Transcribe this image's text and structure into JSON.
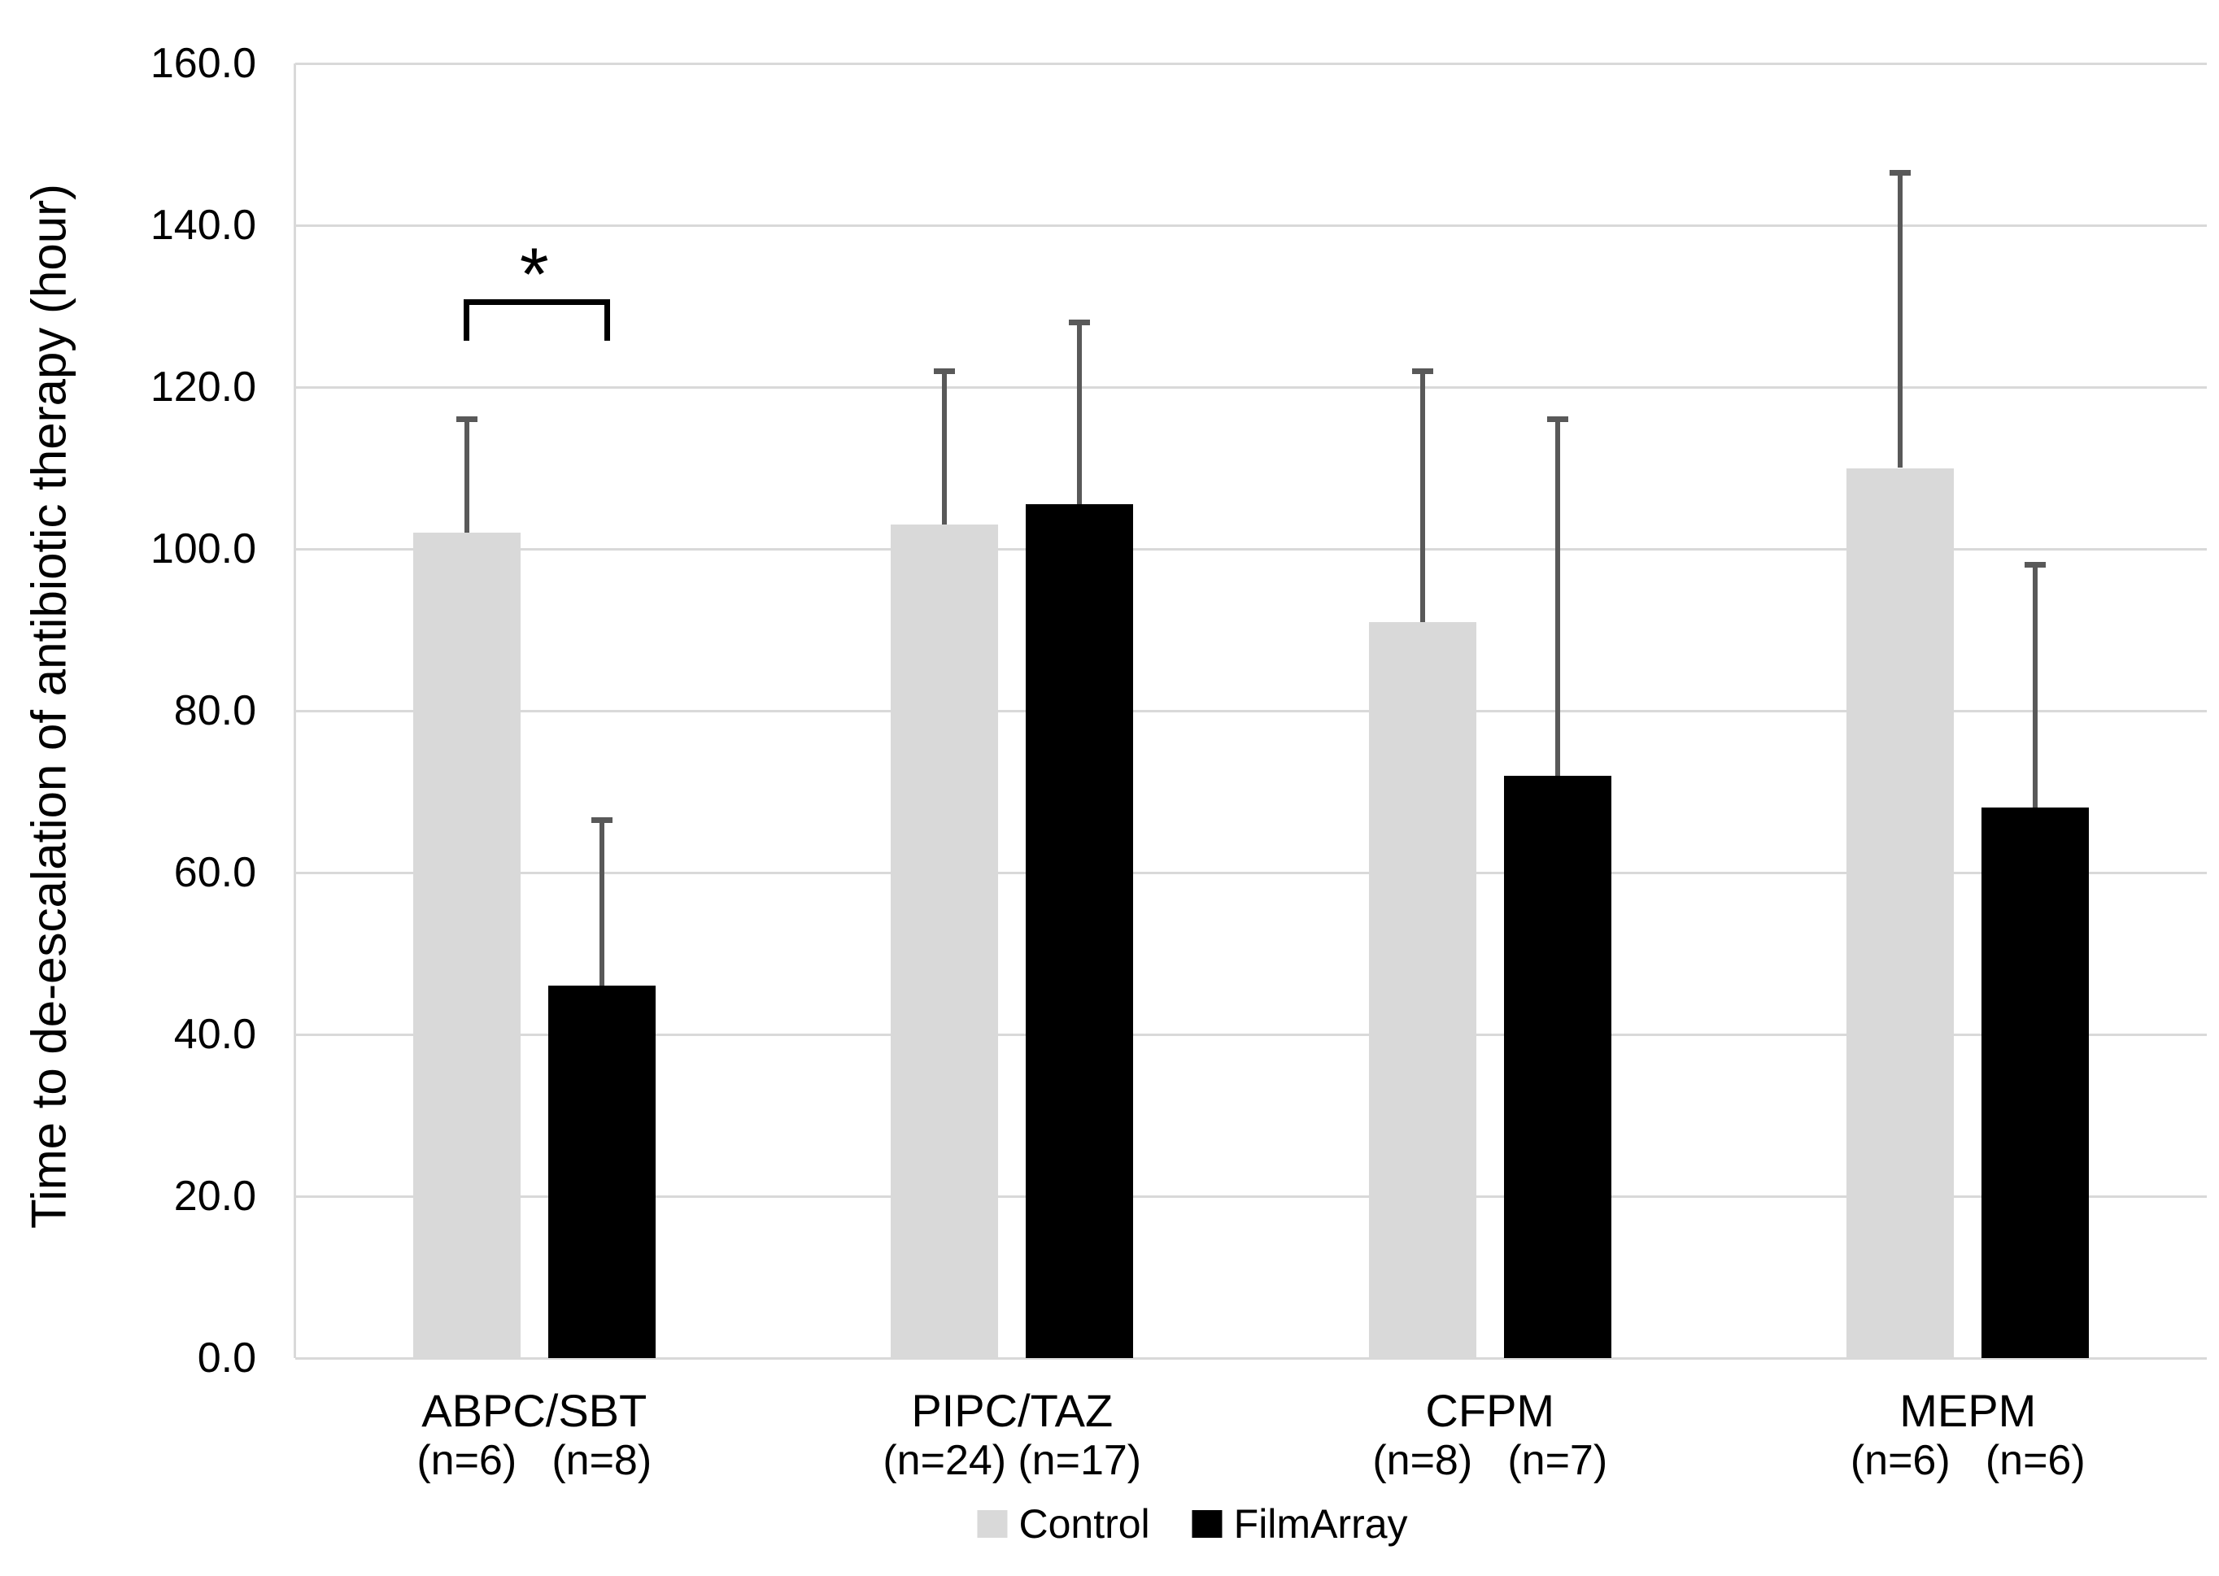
{
  "chart_data": {
    "type": "bar",
    "title": "",
    "xlabel": "",
    "ylabel": "Time to de-escalation of antibiotic therapy (hour)",
    "ylim": [
      0,
      160
    ],
    "ytick_step": 20,
    "ytick_decimals": 1,
    "grid": true,
    "legend_position": "bottom",
    "background_color": "#ffffff",
    "gridline_color": "#d9d9d9",
    "axis_line_color": "#d9d9d9",
    "error_bar_color": "#595959",
    "categories": [
      "ABPC/SBT",
      "PIPC/TAZ",
      "CFPM",
      "MEPM"
    ],
    "category_sublabels": [
      [
        "(n=6)",
        "(n=8)"
      ],
      [
        "(n=24)",
        "(n=17)"
      ],
      [
        "(n=8)",
        "(n=7)"
      ],
      [
        "(n=6)",
        "(n=6)"
      ]
    ],
    "series": [
      {
        "name": "Control",
        "color": "#d9d9d9",
        "values": [
          102,
          103,
          91,
          110
        ],
        "error_plus": [
          14,
          19,
          31,
          36.5
        ]
      },
      {
        "name": "FilmArray",
        "color": "#000000",
        "values": [
          46,
          105.5,
          72,
          68
        ],
        "error_plus": [
          20.5,
          22.5,
          44,
          30
        ]
      }
    ],
    "significance_annotation": {
      "symbol": "*",
      "category_index": 0,
      "between_series": [
        "Control",
        "FilmArray"
      ]
    },
    "legend": [
      "Control",
      "FilmArray"
    ]
  }
}
